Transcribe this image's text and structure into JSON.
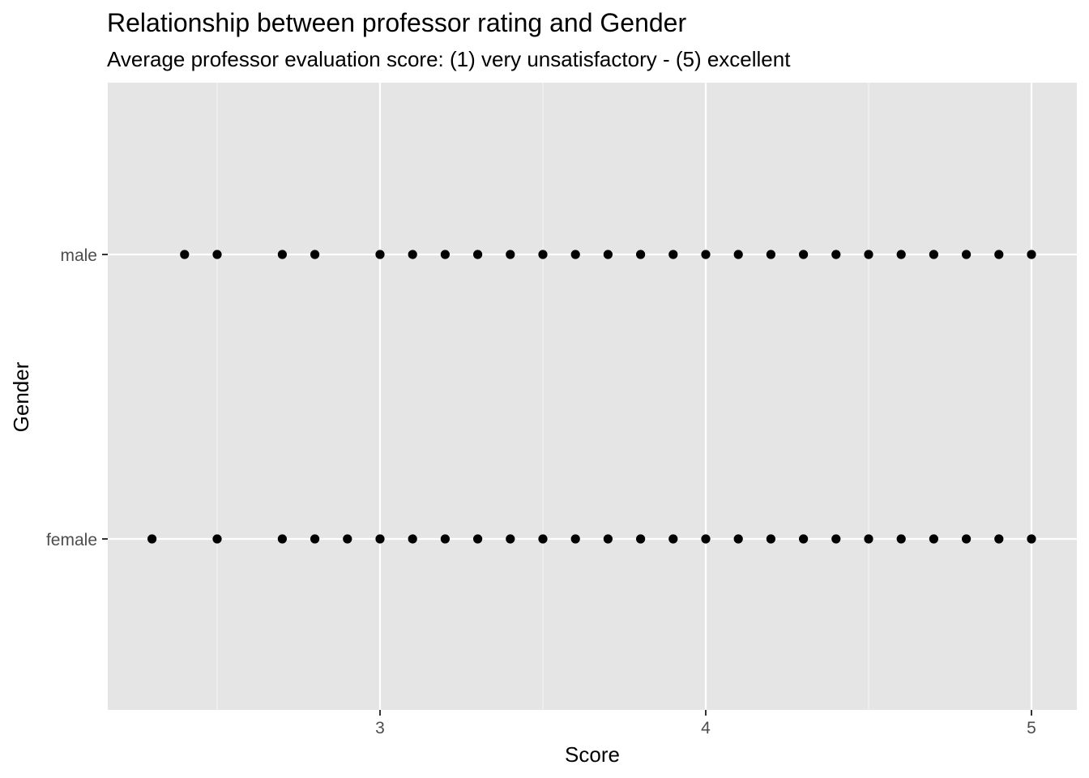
{
  "chart_data": {
    "type": "scatter",
    "title": "Relationship between professor rating and Gender",
    "subtitle": "Average professor evaluation score: (1) very unsatisfactory - (5) excellent",
    "xlabel": "Score",
    "ylabel": "Gender",
    "xlim": [
      2.16,
      5.14
    ],
    "x_ticks": [
      3,
      4,
      5
    ],
    "x_tick_labels": [
      "3",
      "4",
      "5"
    ],
    "categories": [
      "female",
      "male"
    ],
    "grid": true,
    "legend": "none",
    "series": [
      {
        "category": "male",
        "x": [
          2.4,
          2.5,
          2.7,
          2.8,
          3.0,
          3.1,
          3.2,
          3.3,
          3.4,
          3.5,
          3.6,
          3.7,
          3.8,
          3.9,
          4.0,
          4.1,
          4.2,
          4.3,
          4.4,
          4.5,
          4.6,
          4.7,
          4.8,
          4.9,
          5.0
        ]
      },
      {
        "category": "female",
        "x": [
          2.3,
          2.5,
          2.7,
          2.8,
          2.9,
          3.0,
          3.1,
          3.2,
          3.3,
          3.4,
          3.5,
          3.6,
          3.7,
          3.8,
          3.9,
          4.0,
          4.1,
          4.2,
          4.3,
          4.4,
          4.5,
          4.6,
          4.7,
          4.8,
          4.9,
          5.0
        ]
      }
    ],
    "colors": {
      "panel_background": "#e5e5e5",
      "grid_major": "#ffffff",
      "grid_minor": "#f2f2f2",
      "point": "#000000",
      "tick_text": "#4d4d4d",
      "tick_mark": "#333333"
    }
  }
}
